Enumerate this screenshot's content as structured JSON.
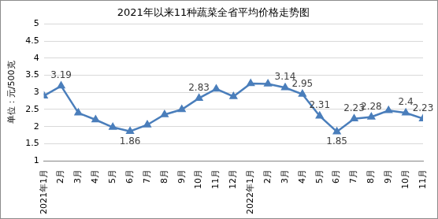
{
  "chart_data": {
    "type": "line",
    "title": "2021年以来11种蔬菜全省平均价格走势图",
    "y_label": "单位：元/500克",
    "categories": [
      "2021年1月",
      "2月",
      "3月",
      "4月",
      "5月",
      "6月",
      "7月",
      "8月",
      "9月",
      "10月",
      "11月",
      "12月",
      "2022年1月",
      "2月",
      "3月",
      "4月",
      "5月",
      "6月",
      "7月",
      "8月",
      "9月",
      "10月",
      "11月"
    ],
    "values": [
      2.9,
      3.19,
      2.4,
      2.2,
      1.98,
      1.86,
      2.05,
      2.35,
      2.5,
      2.83,
      3.1,
      2.88,
      3.26,
      3.25,
      3.14,
      2.95,
      2.31,
      1.85,
      2.23,
      2.28,
      2.47,
      2.4,
      2.23
    ],
    "value_labels": [
      null,
      "3.19",
      null,
      null,
      null,
      "1.86",
      null,
      null,
      null,
      "2.83",
      null,
      null,
      null,
      null,
      "3.14",
      "2.95",
      "2.31",
      "1.85",
      "2.23",
      "2.28",
      null,
      "2.4",
      "2.23"
    ],
    "data_labels": true,
    "color": "#4a7ebb",
    "marker": "triangle",
    "ylim": [
      1,
      5
    ],
    "yticks": [
      1,
      1.5,
      2,
      2.5,
      3,
      3.5,
      4,
      4.5,
      5
    ],
    "grid": true
  }
}
